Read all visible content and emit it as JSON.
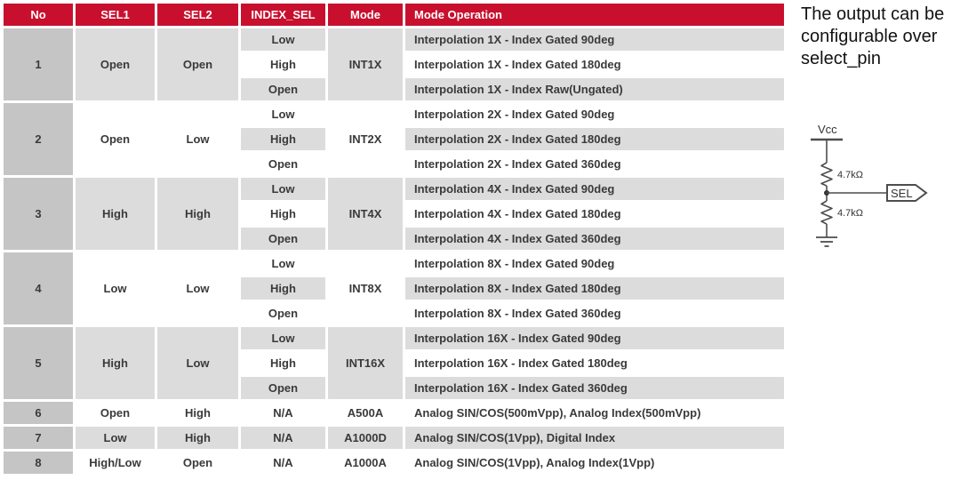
{
  "table": {
    "headers": [
      "No",
      "SEL1",
      "SEL2",
      "INDEX_SEL",
      "Mode",
      "Mode Operation"
    ],
    "groups": [
      {
        "no": "1",
        "sel1": "Open",
        "sel2": "Open",
        "mode": "INT1X",
        "rows": [
          {
            "index_sel": "Low",
            "operation": "Interpolation 1X - Index Gated 90deg"
          },
          {
            "index_sel": "High",
            "operation": "Interpolation 1X - Index Gated 180deg"
          },
          {
            "index_sel": "Open",
            "operation": "Interpolation 1X - Index Raw(Ungated)"
          }
        ]
      },
      {
        "no": "2",
        "sel1": "Open",
        "sel2": "Low",
        "mode": "INT2X",
        "rows": [
          {
            "index_sel": "Low",
            "operation": "Interpolation 2X - Index Gated 90deg"
          },
          {
            "index_sel": "High",
            "operation": "Interpolation 2X - Index Gated 180deg"
          },
          {
            "index_sel": "Open",
            "operation": "Interpolation 2X - Index Gated 360deg"
          }
        ]
      },
      {
        "no": "3",
        "sel1": "High",
        "sel2": "High",
        "mode": "INT4X",
        "rows": [
          {
            "index_sel": "Low",
            "operation": "Interpolation 4X - Index Gated 90deg"
          },
          {
            "index_sel": "High",
            "operation": "Interpolation 4X - Index Gated 180deg"
          },
          {
            "index_sel": "Open",
            "operation": "Interpolation 4X - Index Gated 360deg"
          }
        ]
      },
      {
        "no": "4",
        "sel1": "Low",
        "sel2": "Low",
        "mode": "INT8X",
        "rows": [
          {
            "index_sel": "Low",
            "operation": "Interpolation 8X - Index Gated 90deg"
          },
          {
            "index_sel": "High",
            "operation": "Interpolation 8X - Index Gated 180deg"
          },
          {
            "index_sel": "Open",
            "operation": "Interpolation 8X - Index Gated 360deg"
          }
        ]
      },
      {
        "no": "5",
        "sel1": "High",
        "sel2": "Low",
        "mode": "INT16X",
        "rows": [
          {
            "index_sel": "Low",
            "operation": "Interpolation 16X - Index Gated 90deg"
          },
          {
            "index_sel": "High",
            "operation": "Interpolation 16X - Index Gated 180deg"
          },
          {
            "index_sel": "Open",
            "operation": "Interpolation 16X - Index Gated 360deg"
          }
        ]
      },
      {
        "no": "6",
        "sel1": "Open",
        "sel2": "High",
        "mode": "A500A",
        "rows": [
          {
            "index_sel": "N/A",
            "operation": "Analog SIN/COS(500mVpp), Analog Index(500mVpp)"
          }
        ]
      },
      {
        "no": "7",
        "sel1": "Low",
        "sel2": "High",
        "mode": "A1000D",
        "rows": [
          {
            "index_sel": "N/A",
            "operation": "Analog SIN/COS(1Vpp), Digital Index"
          }
        ]
      },
      {
        "no": "8",
        "sel1": "High/Low",
        "sel2": "Open",
        "mode": "A1000A",
        "rows": [
          {
            "index_sel": "N/A",
            "operation": "Analog SIN/COS(1Vpp), Analog Index(1Vpp)"
          }
        ]
      }
    ]
  },
  "note": {
    "text": "The output can be configurable over select_pin"
  },
  "circuit": {
    "vcc_label": "Vcc",
    "r1_label": "4.7kΩ",
    "r2_label": "4.7kΩ",
    "pin_label": "SEL"
  },
  "colors": {
    "header_red": "#C8102E",
    "no_col_gray": "#c5c5c5",
    "row_gray": "#dcdcdc",
    "row_white": "#ffffff",
    "text_dark": "#3a3a3a",
    "circuit_stroke": "#4d4d4d"
  }
}
